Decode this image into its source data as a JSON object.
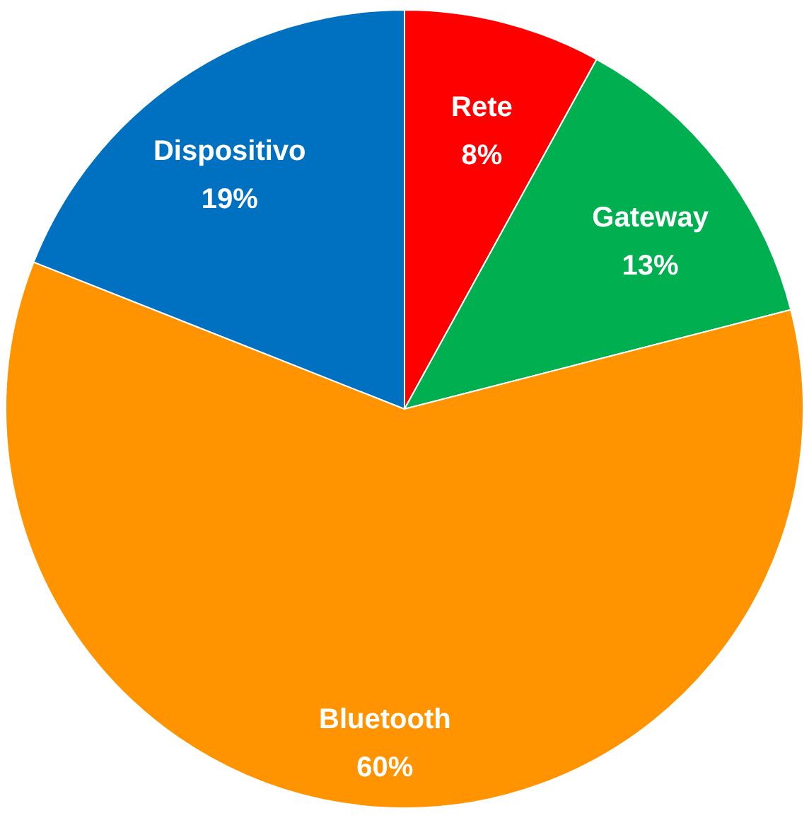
{
  "chart_data": {
    "type": "pie",
    "categories": [
      "Rete",
      "Gateway",
      "Bluetooth",
      "Dispositivo"
    ],
    "values": [
      8,
      13,
      60,
      19
    ],
    "value_labels": [
      "8%",
      "13%",
      "60%",
      "19%"
    ],
    "colors": [
      "#ff0000",
      "#00b050",
      "#ff9300",
      "#0070c0"
    ],
    "legend": false
  }
}
